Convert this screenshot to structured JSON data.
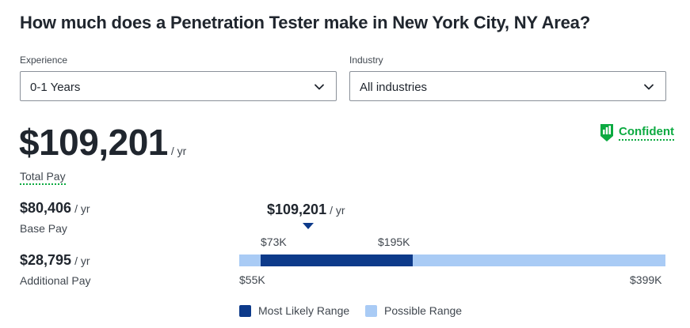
{
  "title": "How much does a Penetration Tester make in New York City, NY Area?",
  "filters": {
    "experience": {
      "label": "Experience",
      "value": "0-1 Years"
    },
    "industry": {
      "label": "Industry",
      "value": "All industries"
    }
  },
  "confidence": {
    "label": "Confident",
    "icon": "confidence-bars-icon"
  },
  "total_pay": {
    "amount": "$109,201",
    "unit": "/ yr",
    "label": "Total Pay"
  },
  "base_pay": {
    "amount": "$80,406",
    "unit": "/ yr",
    "label": "Base Pay"
  },
  "additional_pay": {
    "amount": "$28,795",
    "unit": "/ yr",
    "label": "Additional Pay"
  },
  "range_chart": {
    "marker": {
      "amount": "$109,201",
      "unit": "/ yr"
    },
    "likely_low": "$73K",
    "likely_high": "$195K",
    "possible_low": "$55K",
    "possible_high": "$399K",
    "legend": {
      "likely": "Most Likely Range",
      "possible": "Possible Range"
    },
    "colors": {
      "likely": "#0d3a8a",
      "possible": "#a9cbf5"
    }
  },
  "colors": {
    "accent_green": "#0caa41",
    "text": "#20262e"
  }
}
